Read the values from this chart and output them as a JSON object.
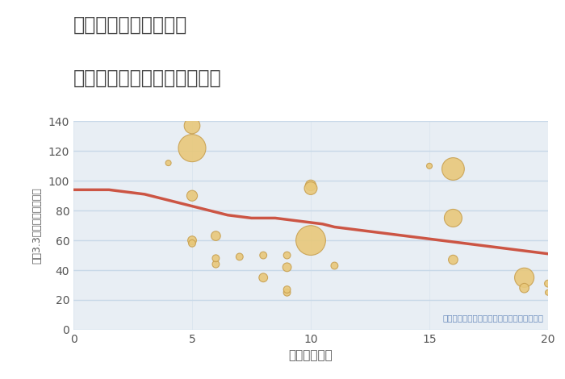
{
  "title_line1": "奈良県奈良市南市町の",
  "title_line2": "駅距離別中古マンション価格",
  "xlabel": "駅距離（分）",
  "ylabel": "坪（3.3㎡）単価（万円）",
  "annotation": "円の大きさは、取引のあった物件面積を示す",
  "xlim": [
    0,
    20
  ],
  "ylim": [
    0,
    140
  ],
  "yticks": [
    0,
    20,
    40,
    60,
    80,
    100,
    120,
    140
  ],
  "xticks": [
    0,
    5,
    10,
    15,
    20
  ],
  "scatter_x": [
    4,
    5,
    5,
    5,
    5,
    5,
    6,
    6,
    6,
    7,
    8,
    8,
    9,
    9,
    9,
    9,
    10,
    10,
    10,
    11,
    15,
    16,
    16,
    16,
    19,
    19,
    20,
    20
  ],
  "scatter_y": [
    112,
    60,
    58,
    90,
    122,
    137,
    44,
    48,
    63,
    49,
    35,
    50,
    25,
    27,
    42,
    50,
    97,
    60,
    95,
    43,
    110,
    75,
    108,
    47,
    35,
    28,
    31,
    25
  ],
  "scatter_size": [
    25,
    60,
    40,
    90,
    600,
    200,
    40,
    40,
    70,
    40,
    60,
    40,
    40,
    40,
    60,
    40,
    90,
    700,
    130,
    40,
    25,
    250,
    400,
    70,
    300,
    70,
    40,
    25
  ],
  "scatter_color": "#E8C87A",
  "scatter_edge_color": "#C8A050",
  "trend_x": [
    0,
    0.5,
    1,
    1.5,
    2,
    2.5,
    3,
    3.5,
    4,
    4.5,
    5,
    5.5,
    6,
    6.5,
    7,
    7.5,
    8,
    8.5,
    9,
    9.5,
    10,
    10.5,
    11,
    12,
    13,
    14,
    15,
    16,
    17,
    18,
    19,
    20
  ],
  "trend_y": [
    94,
    94,
    94,
    94,
    93,
    92,
    91,
    89,
    87,
    85,
    83,
    81,
    79,
    77,
    76,
    75,
    75,
    75,
    74,
    73,
    72,
    71,
    69,
    67,
    65,
    63,
    61,
    59,
    57,
    55,
    53,
    51
  ],
  "trend_color": "#CC5544",
  "background_color": "#ffffff",
  "plot_bg_color": "#e8eef4",
  "grid_color": "#c8d8e8",
  "title_color": "#444444",
  "annotation_color": "#6688bb"
}
